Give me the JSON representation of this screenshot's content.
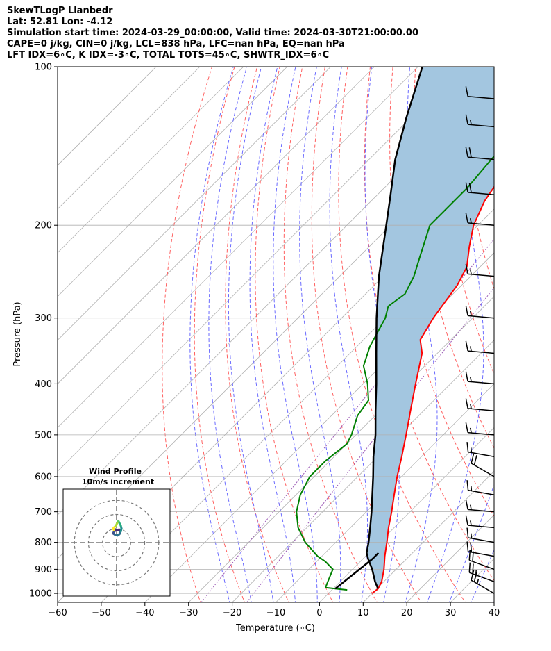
{
  "header": {
    "line1": "SkewTLogP Llanbedr",
    "line2": "Lat: 52.81   Lon: -4.12",
    "line3": "Simulation start time: 2024-03-29_00:00:00, Valid time: 2024-03-30T21:00:00.00",
    "line4": "CAPE=0 j/kg, CIN=0 j/kg, LCL=838 hPa, LFC=nan hPa, EQ=nan hPa",
    "line5": "LFT IDX=6∘C, K IDX=-3∘C, TOTAL TOTS=45∘C, SHWTR_IDX=6∘C"
  },
  "colors": {
    "temperature": "#ff0000",
    "dewpoint": "#008000",
    "parcel": "#000000",
    "cape_fill": "#a3c6e0",
    "dry_adiabat": "#ff6060",
    "moist_adiabat": "#6a6aff",
    "isotherm": "#b0b0b0",
    "mixing_ratio": "#9b59b6"
  },
  "chart_data": {
    "type": "line",
    "subtype": "skew-T log-P",
    "xlabel": "Temperature (∘C)",
    "ylabel": "Pressure (hPa)",
    "xlim": [
      -60,
      40
    ],
    "ylim": [
      1040,
      100
    ],
    "x_ticks": [
      -60,
      -50,
      -40,
      -30,
      -20,
      -10,
      0,
      10,
      20,
      30,
      40
    ],
    "x_tick_labels": [
      "−60",
      "−50",
      "−40",
      "−30",
      "−20",
      "−10",
      "0",
      "10",
      "20",
      "30",
      "40"
    ],
    "y_ticks": [
      1000,
      900,
      800,
      700,
      600,
      500,
      400,
      300,
      200,
      100
    ],
    "y_tick_labels": [
      "1000",
      "900",
      "800",
      "700",
      "600",
      "500",
      "400",
      "300",
      "200",
      "100"
    ],
    "grid": true,
    "series": [
      {
        "key": "temperature",
        "points": [
          [
            1000,
            10
          ],
          [
            980,
            10.3
          ],
          [
            950,
            9.5
          ],
          [
            900,
            7.2
          ],
          [
            850,
            4.4
          ],
          [
            800,
            1.7
          ],
          [
            750,
            -1.3
          ],
          [
            700,
            -4.2
          ],
          [
            650,
            -7.5
          ],
          [
            600,
            -11
          ],
          [
            550,
            -14.5
          ],
          [
            500,
            -18.5
          ],
          [
            450,
            -23
          ],
          [
            400,
            -28
          ],
          [
            350,
            -33.5
          ],
          [
            330,
            -37
          ],
          [
            300,
            -39
          ],
          [
            260,
            -41
          ],
          [
            240,
            -43
          ],
          [
            220,
            -47
          ],
          [
            200,
            -51
          ],
          [
            180,
            -54
          ],
          [
            160,
            -56
          ],
          [
            140,
            -59
          ],
          [
            120,
            -62
          ],
          [
            110,
            -64
          ],
          [
            100,
            -66
          ]
        ]
      },
      {
        "key": "dewpoint",
        "points": [
          [
            985,
            3.5
          ],
          [
            975,
            -2
          ],
          [
            960,
            -2.5
          ],
          [
            930,
            -3.5
          ],
          [
            900,
            -4.5
          ],
          [
            870,
            -8
          ],
          [
            850,
            -11
          ],
          [
            800,
            -17
          ],
          [
            750,
            -22
          ],
          [
            700,
            -26
          ],
          [
            650,
            -29
          ],
          [
            600,
            -31
          ],
          [
            560,
            -31
          ],
          [
            520,
            -30
          ],
          [
            500,
            -31
          ],
          [
            460,
            -34
          ],
          [
            430,
            -35
          ],
          [
            400,
            -39
          ],
          [
            370,
            -44
          ],
          [
            340,
            -47
          ],
          [
            300,
            -50
          ],
          [
            285,
            -52
          ],
          [
            270,
            -51
          ],
          [
            250,
            -53
          ],
          [
            230,
            -56
          ],
          [
            200,
            -61
          ],
          [
            185,
            -61
          ],
          [
            170,
            -61
          ],
          [
            150,
            -62
          ],
          [
            125,
            -63
          ],
          [
            100,
            -65
          ]
        ]
      },
      {
        "key": "parcel",
        "points": [
          [
            980,
            10.3
          ],
          [
            950,
            8
          ],
          [
            900,
            4.5
          ],
          [
            860,
            1.2
          ],
          [
            838,
            -0.5
          ],
          [
            800,
            -2.5
          ],
          [
            750,
            -5.5
          ],
          [
            700,
            -8.8
          ],
          [
            650,
            -12.5
          ],
          [
            600,
            -16.5
          ],
          [
            550,
            -21
          ],
          [
            500,
            -25.5
          ],
          [
            450,
            -31
          ],
          [
            400,
            -37
          ],
          [
            350,
            -44
          ],
          [
            300,
            -52
          ],
          [
            250,
            -61
          ],
          [
            200,
            -71
          ],
          [
            175,
            -77
          ],
          [
            150,
            -84
          ],
          [
            125,
            -91
          ],
          [
            100,
            -99
          ]
        ]
      },
      {
        "key": "parcel_dry_branch",
        "points": [
          [
            980,
            0.5
          ],
          [
            860,
            2.2
          ],
          [
            838,
            2.2
          ]
        ]
      }
    ],
    "wind_barbs": [
      {
        "p": 1000,
        "speed_kt": 25,
        "dir": 300
      },
      {
        "p": 950,
        "speed_kt": 25,
        "dir": 290
      },
      {
        "p": 900,
        "speed_kt": 20,
        "dir": 290
      },
      {
        "p": 850,
        "speed_kt": 20,
        "dir": 280
      },
      {
        "p": 800,
        "speed_kt": 15,
        "dir": 280
      },
      {
        "p": 750,
        "speed_kt": 15,
        "dir": 275
      },
      {
        "p": 700,
        "speed_kt": 15,
        "dir": 275
      },
      {
        "p": 650,
        "speed_kt": 15,
        "dir": 280
      },
      {
        "p": 600,
        "speed_kt": 20,
        "dir": 300
      },
      {
        "p": 550,
        "speed_kt": 15,
        "dir": 280
      },
      {
        "p": 500,
        "speed_kt": 15,
        "dir": 275
      },
      {
        "p": 450,
        "speed_kt": 15,
        "dir": 275
      },
      {
        "p": 400,
        "speed_kt": 15,
        "dir": 275
      },
      {
        "p": 350,
        "speed_kt": 15,
        "dir": 275
      },
      {
        "p": 300,
        "speed_kt": 15,
        "dir": 275
      },
      {
        "p": 250,
        "speed_kt": 15,
        "dir": 275
      },
      {
        "p": 200,
        "speed_kt": 15,
        "dir": 275
      },
      {
        "p": 175,
        "speed_kt": 20,
        "dir": 275
      },
      {
        "p": 150,
        "speed_kt": 20,
        "dir": 275
      },
      {
        "p": 130,
        "speed_kt": 15,
        "dir": 275
      },
      {
        "p": 115,
        "speed_kt": 10,
        "dir": 275
      }
    ],
    "hodograph": {
      "title": "Wind Profile",
      "subtitle": "10m/s increment",
      "rings": [
        10,
        20,
        30
      ],
      "range": [
        -38,
        38
      ],
      "u": [
        2,
        2.5,
        3,
        2,
        0.5,
        -1,
        -2,
        -2.5,
        -1,
        0.5,
        2,
        3,
        3.5,
        3,
        2.5,
        2,
        1.5,
        1,
        0.5,
        0,
        -0.5,
        -1.5,
        -2.5,
        -2
      ],
      "v": [
        6,
        7.5,
        8.5,
        9,
        9,
        8.5,
        7.5,
        6.5,
        5.5,
        5,
        6,
        8,
        10,
        12,
        13,
        14,
        15,
        15,
        14,
        13,
        12,
        11,
        10,
        9
      ]
    }
  }
}
